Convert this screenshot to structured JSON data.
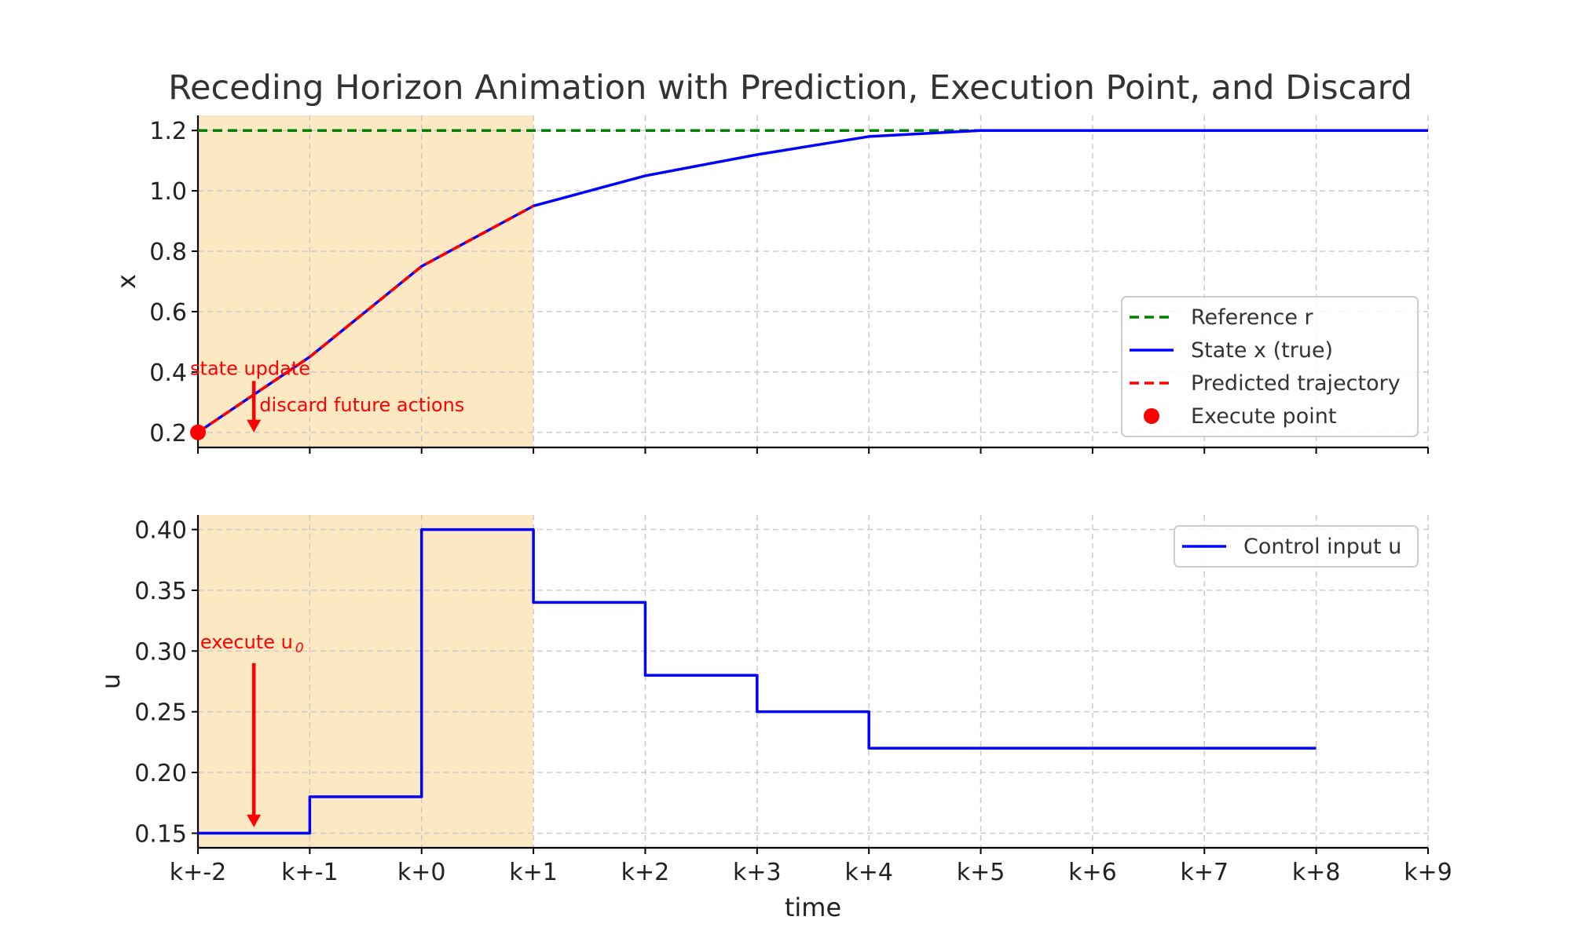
{
  "title": "Receding Horizon Animation with Prediction, Execution Point, and Discard",
  "colors": {
    "reference": "#008000",
    "state": "#0000ff",
    "predicted": "#ff0000",
    "execute": "#ff0000",
    "control": "#0000ff",
    "horizon_shade": "#fde8c4",
    "annotation": "#ff0000"
  },
  "chart_data": [
    {
      "type": "line",
      "ylabel": "x",
      "xlabel": "",
      "x_ticks": [
        "k+-2",
        "k+-1",
        "k+0",
        "k+1",
        "k+2",
        "k+3",
        "k+4",
        "k+5",
        "k+6",
        "k+7",
        "k+8",
        "k+9"
      ],
      "xlim": [
        -2,
        9
      ],
      "ylim": [
        0.15,
        1.25
      ],
      "y_ticks": [
        "0.2",
        "0.4",
        "0.6",
        "0.8",
        "1.0",
        "1.2"
      ],
      "grid": true,
      "shaded_horizon": [
        -2,
        1
      ],
      "legend_position": "center-right",
      "series": [
        {
          "name": "Reference r",
          "style": "dashed",
          "x": [
            -2,
            9
          ],
          "y": [
            1.2,
            1.2
          ]
        },
        {
          "name": "State x (true)",
          "style": "solid",
          "x": [
            -2,
            -1,
            0,
            1,
            2,
            3,
            4,
            5,
            6,
            7,
            8,
            9
          ],
          "y": [
            0.2,
            0.45,
            0.75,
            0.95,
            1.05,
            1.12,
            1.18,
            1.2,
            1.2,
            1.2,
            1.2,
            1.2
          ]
        },
        {
          "name": "Predicted trajectory",
          "style": "dashed",
          "x": [
            -2,
            -1,
            0,
            1
          ],
          "y": [
            0.2,
            0.45,
            0.75,
            0.95
          ]
        },
        {
          "name": "Execute point",
          "style": "marker",
          "x": [
            -2
          ],
          "y": [
            0.2
          ]
        }
      ],
      "annotations": [
        {
          "text": "state update",
          "x": -2.07,
          "y": 0.39
        },
        {
          "text": "discard future actions",
          "x": -1.45,
          "y": 0.27
        }
      ],
      "arrow": {
        "x": -1.5,
        "y_from": 0.37,
        "y_to": 0.2
      }
    },
    {
      "type": "line",
      "ylabel": "u",
      "xlabel": "time",
      "x_ticks": [
        "k+-2",
        "k+-1",
        "k+0",
        "k+1",
        "k+2",
        "k+3",
        "k+4",
        "k+5",
        "k+6",
        "k+7",
        "k+8",
        "k+9"
      ],
      "xlim": [
        -2,
        9
      ],
      "ylim": [
        0.138,
        0.412
      ],
      "y_ticks": [
        "0.15",
        "0.20",
        "0.25",
        "0.30",
        "0.35",
        "0.40"
      ],
      "grid": true,
      "shaded_horizon": [
        -2,
        1
      ],
      "legend_position": "top-right",
      "series": [
        {
          "name": "Control input u",
          "style": "step",
          "x": [
            -2,
            -1,
            0,
            1,
            2,
            3,
            4,
            5,
            6,
            7,
            8
          ],
          "y": [
            0.15,
            0.18,
            0.4,
            0.34,
            0.28,
            0.25,
            0.22,
            0.22,
            0.22,
            0.22,
            0.22
          ]
        }
      ],
      "annotations": [
        {
          "text": "execute u",
          "sub": "0",
          "x": -1.98,
          "y": 0.302
        }
      ],
      "arrow": {
        "x": -1.5,
        "y_from": 0.29,
        "y_to": 0.155
      }
    }
  ]
}
